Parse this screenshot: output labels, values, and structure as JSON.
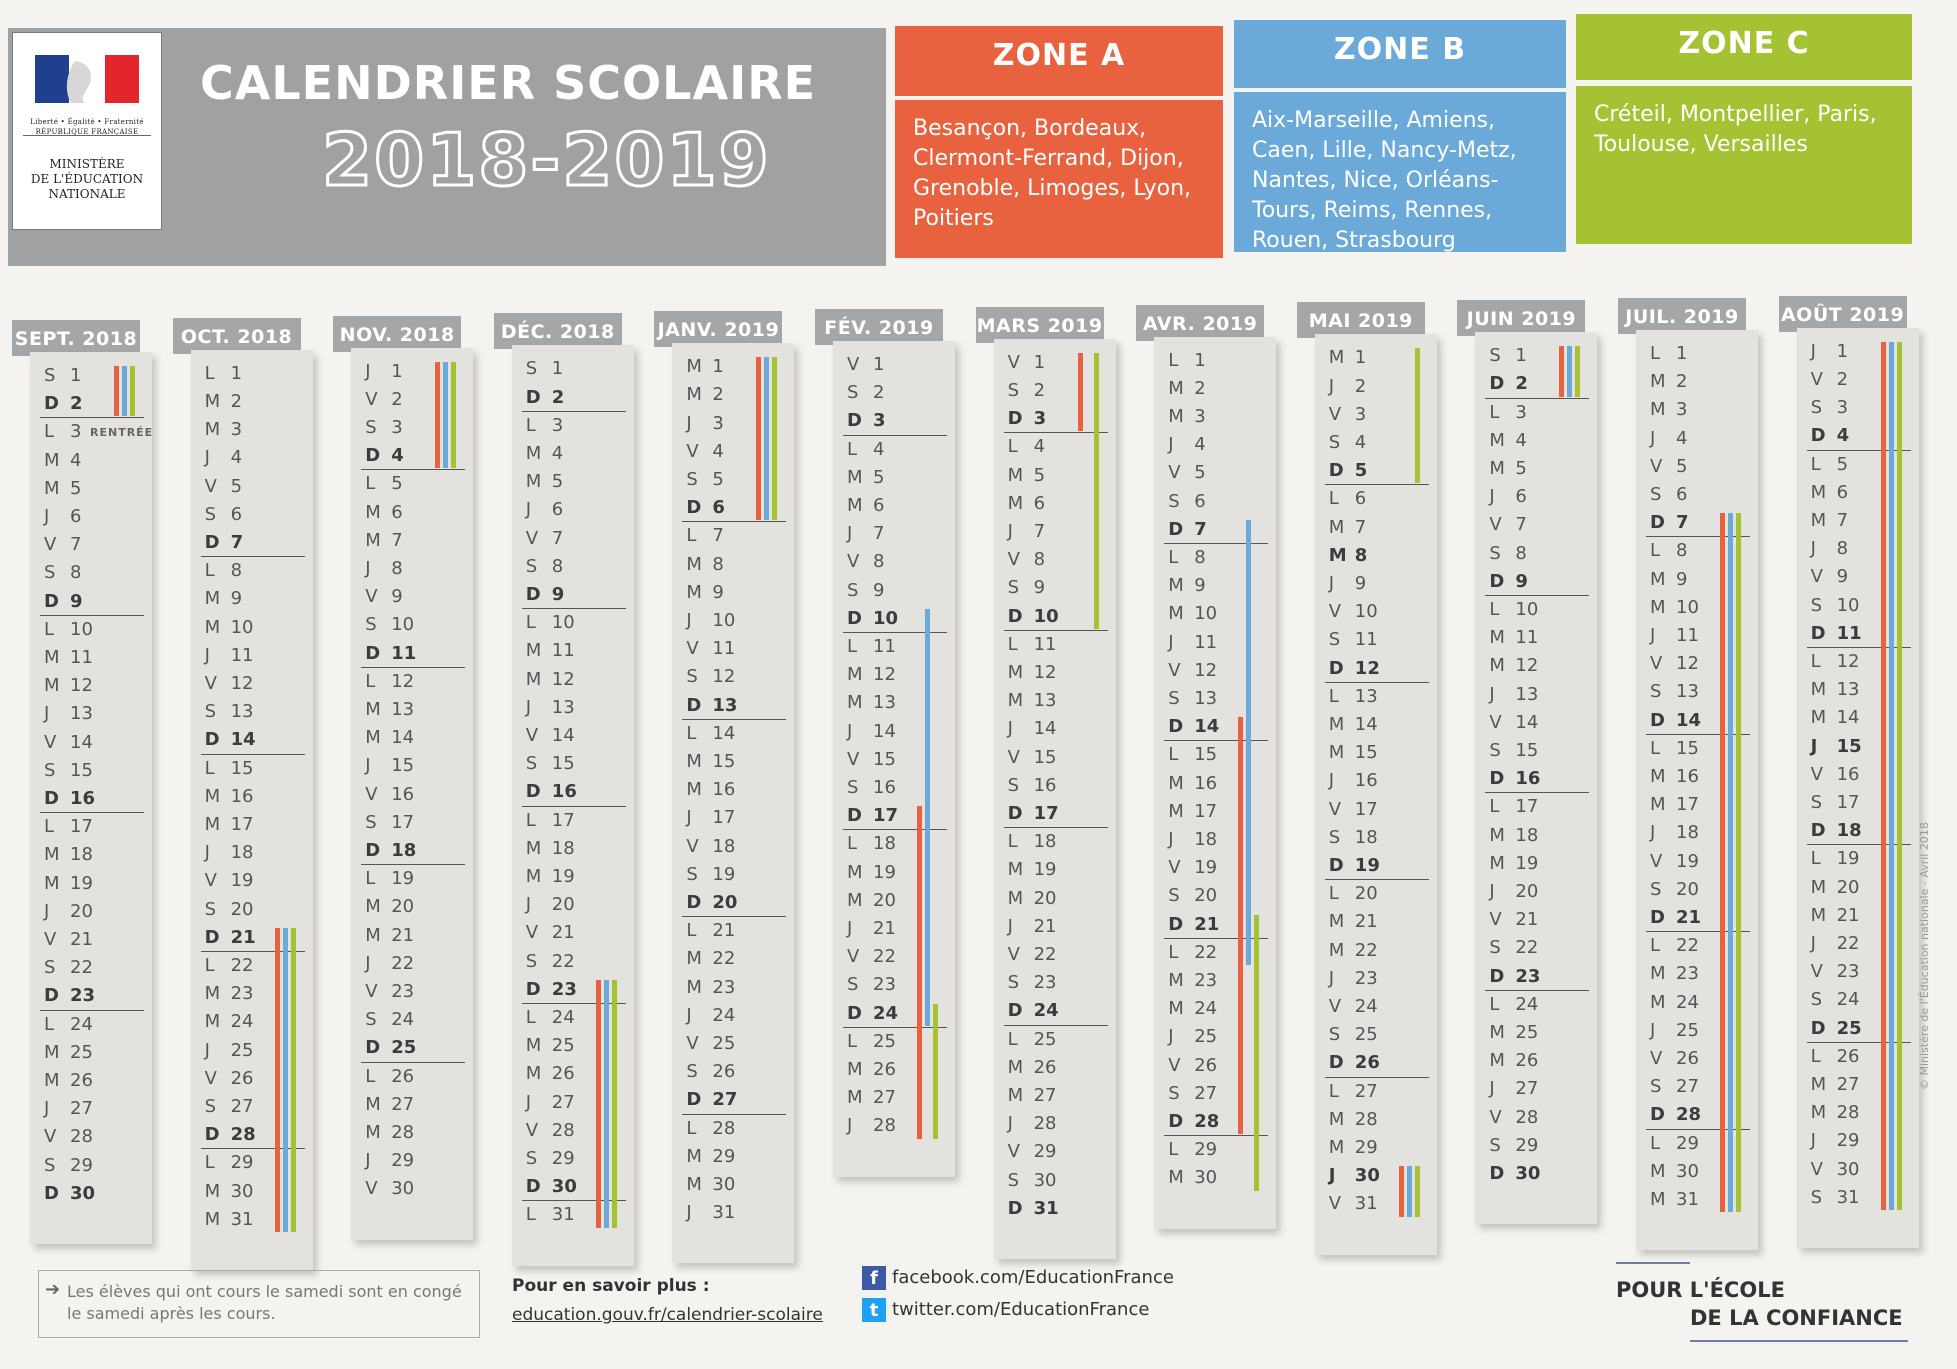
{
  "header": {
    "title": "CALENDRIER SCOLAIRE",
    "year": "2018-2019",
    "republic": "RÉPUBLIQUE FRANÇAISE",
    "motto": "Liberté • Égalité • Fraternité",
    "ministry": [
      "MINISTÈRE",
      "DE L'ÉDUCATION",
      "NATIONALE"
    ]
  },
  "zones": [
    {
      "name": "ZONE A",
      "cities": "Besançon, Bordeaux, Clermont-Ferrand, Dijon, Grenoble, Limoges, Lyon, Poitiers",
      "color": "#e8623f"
    },
    {
      "name": "ZONE B",
      "cities": "Aix-Marseille, Amiens, Caen, Lille, Nancy-Metz, Nantes, Nice, Orléans-Tours, Reims, Rennes, Rouen, Strasbourg",
      "color": "#6aa9d8"
    },
    {
      "name": "ZONE C",
      "cities": "Créteil, Montpellier, Paris, Toulouse, Versailles",
      "color": "#a5c232"
    }
  ],
  "months": [
    {
      "label": "SEPT. 2018",
      "first": 5,
      "count": 30,
      "annotations": [
        {
          "day": 3,
          "text": "RENTRÉE"
        }
      ]
    },
    {
      "label": "OCT. 2018",
      "first": 0,
      "count": 31
    },
    {
      "label": "NOV. 2018",
      "first": 3,
      "count": 30
    },
    {
      "label": "DÉC. 2018",
      "first": 5,
      "count": 31
    },
    {
      "label": "JANV. 2019",
      "first": 1,
      "count": 31
    },
    {
      "label": "FÉV. 2019",
      "first": 4,
      "count": 28
    },
    {
      "label": "MARS 2019",
      "first": 4,
      "count": 31
    },
    {
      "label": "AVR. 2019",
      "first": 0,
      "count": 30
    },
    {
      "label": "MAI 2019",
      "first": 2,
      "count": 31
    },
    {
      "label": "JUIN 2019",
      "first": 5,
      "count": 30
    },
    {
      "label": "JUIL. 2019",
      "first": 0,
      "count": 31
    },
    {
      "label": "AOÛT 2019",
      "first": 3,
      "count": 31
    }
  ],
  "weekday_letters": [
    "L",
    "M",
    "M",
    "J",
    "V",
    "S",
    "D"
  ],
  "holidays": {
    "may": [
      8,
      30
    ],
    "aug": [
      15
    ]
  },
  "vacations": [
    {
      "month": 0,
      "zone": "A",
      "from": 1,
      "to": 2
    },
    {
      "month": 0,
      "zone": "B",
      "from": 1,
      "to": 2
    },
    {
      "month": 0,
      "zone": "C",
      "from": 1,
      "to": 2
    },
    {
      "month": 1,
      "zone": "A",
      "from": 21,
      "to": 31
    },
    {
      "month": 1,
      "zone": "B",
      "from": 21,
      "to": 31
    },
    {
      "month": 1,
      "zone": "C",
      "from": 21,
      "to": 31
    },
    {
      "month": 2,
      "zone": "A",
      "from": 1,
      "to": 4
    },
    {
      "month": 2,
      "zone": "B",
      "from": 1,
      "to": 4
    },
    {
      "month": 2,
      "zone": "C",
      "from": 1,
      "to": 4
    },
    {
      "month": 3,
      "zone": "A",
      "from": 23,
      "to": 31
    },
    {
      "month": 3,
      "zone": "B",
      "from": 23,
      "to": 31
    },
    {
      "month": 3,
      "zone": "C",
      "from": 23,
      "to": 31
    },
    {
      "month": 4,
      "zone": "A",
      "from": 1,
      "to": 6
    },
    {
      "month": 4,
      "zone": "B",
      "from": 1,
      "to": 6
    },
    {
      "month": 4,
      "zone": "C",
      "from": 1,
      "to": 6
    },
    {
      "month": 5,
      "zone": "B",
      "from": 10,
      "to": 24
    },
    {
      "month": 5,
      "zone": "A",
      "from": 17,
      "to": 28
    },
    {
      "month": 5,
      "zone": "C",
      "from": 24,
      "to": 28
    },
    {
      "month": 6,
      "zone": "A",
      "from": 1,
      "to": 3
    },
    {
      "month": 6,
      "zone": "C",
      "from": 1,
      "to": 10
    },
    {
      "month": 7,
      "zone": "B",
      "from": 7,
      "to": 22
    },
    {
      "month": 7,
      "zone": "A",
      "from": 14,
      "to": 28
    },
    {
      "month": 7,
      "zone": "C",
      "from": 21,
      "to": 30
    },
    {
      "month": 8,
      "zone": "C",
      "from": 1,
      "to": 5
    },
    {
      "month": 8,
      "zone": "A",
      "from": 30,
      "to": 31
    },
    {
      "month": 8,
      "zone": "B",
      "from": 30,
      "to": 31
    },
    {
      "month": 8,
      "zone": "C",
      "from": 30,
      "to": 31
    },
    {
      "month": 9,
      "zone": "A",
      "from": 1,
      "to": 2
    },
    {
      "month": 9,
      "zone": "B",
      "from": 1,
      "to": 2
    },
    {
      "month": 9,
      "zone": "C",
      "from": 1,
      "to": 2
    },
    {
      "month": 10,
      "zone": "A",
      "from": 7,
      "to": 31
    },
    {
      "month": 10,
      "zone": "B",
      "from": 7,
      "to": 31
    },
    {
      "month": 10,
      "zone": "C",
      "from": 7,
      "to": 31
    },
    {
      "month": 11,
      "zone": "A",
      "from": 1,
      "to": 31
    },
    {
      "month": 11,
      "zone": "B",
      "from": 1,
      "to": 31
    },
    {
      "month": 11,
      "zone": "C",
      "from": 1,
      "to": 31
    }
  ],
  "footer": {
    "note_arrow": "➔",
    "note": "Les élèves qui ont cours le samedi sont en congé le samedi après les cours.",
    "more_label": "Pour en savoir plus :",
    "more_link": "education.gouv.fr/calendrier-scolaire",
    "facebook_icon": "f",
    "facebook": "facebook.com/EducationFrance",
    "twitter_icon": "t",
    "twitter": "twitter.com/EducationFrance",
    "slogan_line1": "POUR L'ÉCOLE",
    "slogan_line2": "DE LA CONFIANCE",
    "copyright": "© Ministère de l'Éducation nationale - Avril 2018"
  }
}
